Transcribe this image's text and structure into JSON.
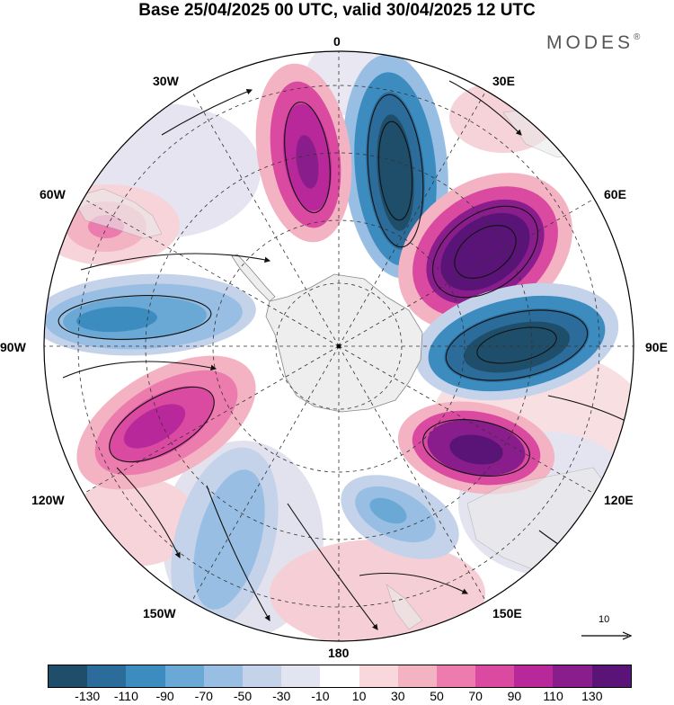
{
  "title": "Base 25/04/2025 00 UTC, valid 30/04/2025 12 UTC",
  "logo": {
    "text": "MODES",
    "mark": "®"
  },
  "longitude_labels": {
    "lon_0": "0",
    "lon_30e": "30E",
    "lon_60e": "60E",
    "lon_90e": "90E",
    "lon_120e": "120E",
    "lon_150e": "150E",
    "lon_180": "180",
    "lon_150w": "150W",
    "lon_120w": "120W",
    "lon_90w": "90W",
    "lon_60w": "60W",
    "lon_30w": "30W"
  },
  "reference_vector": {
    "label": "10"
  },
  "colorbar": {
    "colors": [
      "#1f4e6b",
      "#2b6c9a",
      "#3d8cc0",
      "#6aa9d6",
      "#98bfe3",
      "#c4d2ea",
      "#e3e4f2",
      "#ffffff",
      "#f9d8dc",
      "#f4b3c2",
      "#ec7cae",
      "#d94aa0",
      "#b8289a",
      "#8a1d8c",
      "#5a1478"
    ],
    "ticks": [
      "-130",
      "-110",
      "-90",
      "-70",
      "-50",
      "-30",
      "-10",
      "10",
      "30",
      "50",
      "70",
      "90",
      "110",
      "130"
    ]
  },
  "map_features": {
    "projection": "south polar stereographic",
    "anomaly_cells": [
      {
        "sign": "negative",
        "sector": "0-30E",
        "intensity": "strong"
      },
      {
        "sign": "positive",
        "sector": "30E-60E",
        "intensity": "very strong"
      },
      {
        "sign": "negative",
        "sector": "60E-100E",
        "intensity": "strong"
      },
      {
        "sign": "positive",
        "sector": "120E-140E",
        "intensity": "very strong"
      },
      {
        "sign": "negative",
        "sector": "150E-170E",
        "intensity": "moderate"
      },
      {
        "sign": "positive",
        "sector": "100W-120W",
        "intensity": "strong"
      },
      {
        "sign": "negative",
        "sector": "80W-95W",
        "intensity": "moderate"
      },
      {
        "sign": "positive",
        "sector": "10W-25W",
        "intensity": "strong"
      },
      {
        "sign": "positive",
        "sector": "60W-75W",
        "intensity": "weak"
      },
      {
        "sign": "negative",
        "sector": "140W-160W",
        "intensity": "weak"
      }
    ]
  }
}
